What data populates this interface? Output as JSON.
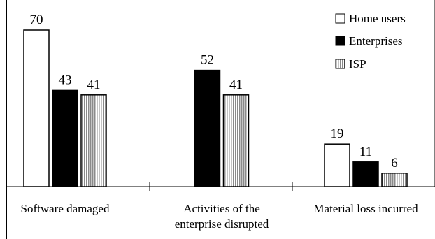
{
  "chart_data": {
    "type": "bar",
    "title": "",
    "xlabel": "",
    "ylabel": "",
    "ylim": [
      0,
      70
    ],
    "grid": false,
    "legend_position": "top-right",
    "categories": [
      [
        "Software damaged"
      ],
      [
        "Activities of the",
        "enterprise disrupted"
      ],
      [
        "Material loss incurred"
      ]
    ],
    "series": [
      {
        "name": "Home users",
        "values": [
          70,
          null,
          19
        ],
        "fill": "#ffffff",
        "pattern": "solid"
      },
      {
        "name": "Enterprises",
        "values": [
          43,
          52,
          11
        ],
        "fill": "#000000",
        "pattern": "solid"
      },
      {
        "name": "ISP",
        "values": [
          41,
          41,
          6
        ],
        "fill": "#c8c8c8",
        "pattern": "vertical-stripes"
      }
    ]
  }
}
